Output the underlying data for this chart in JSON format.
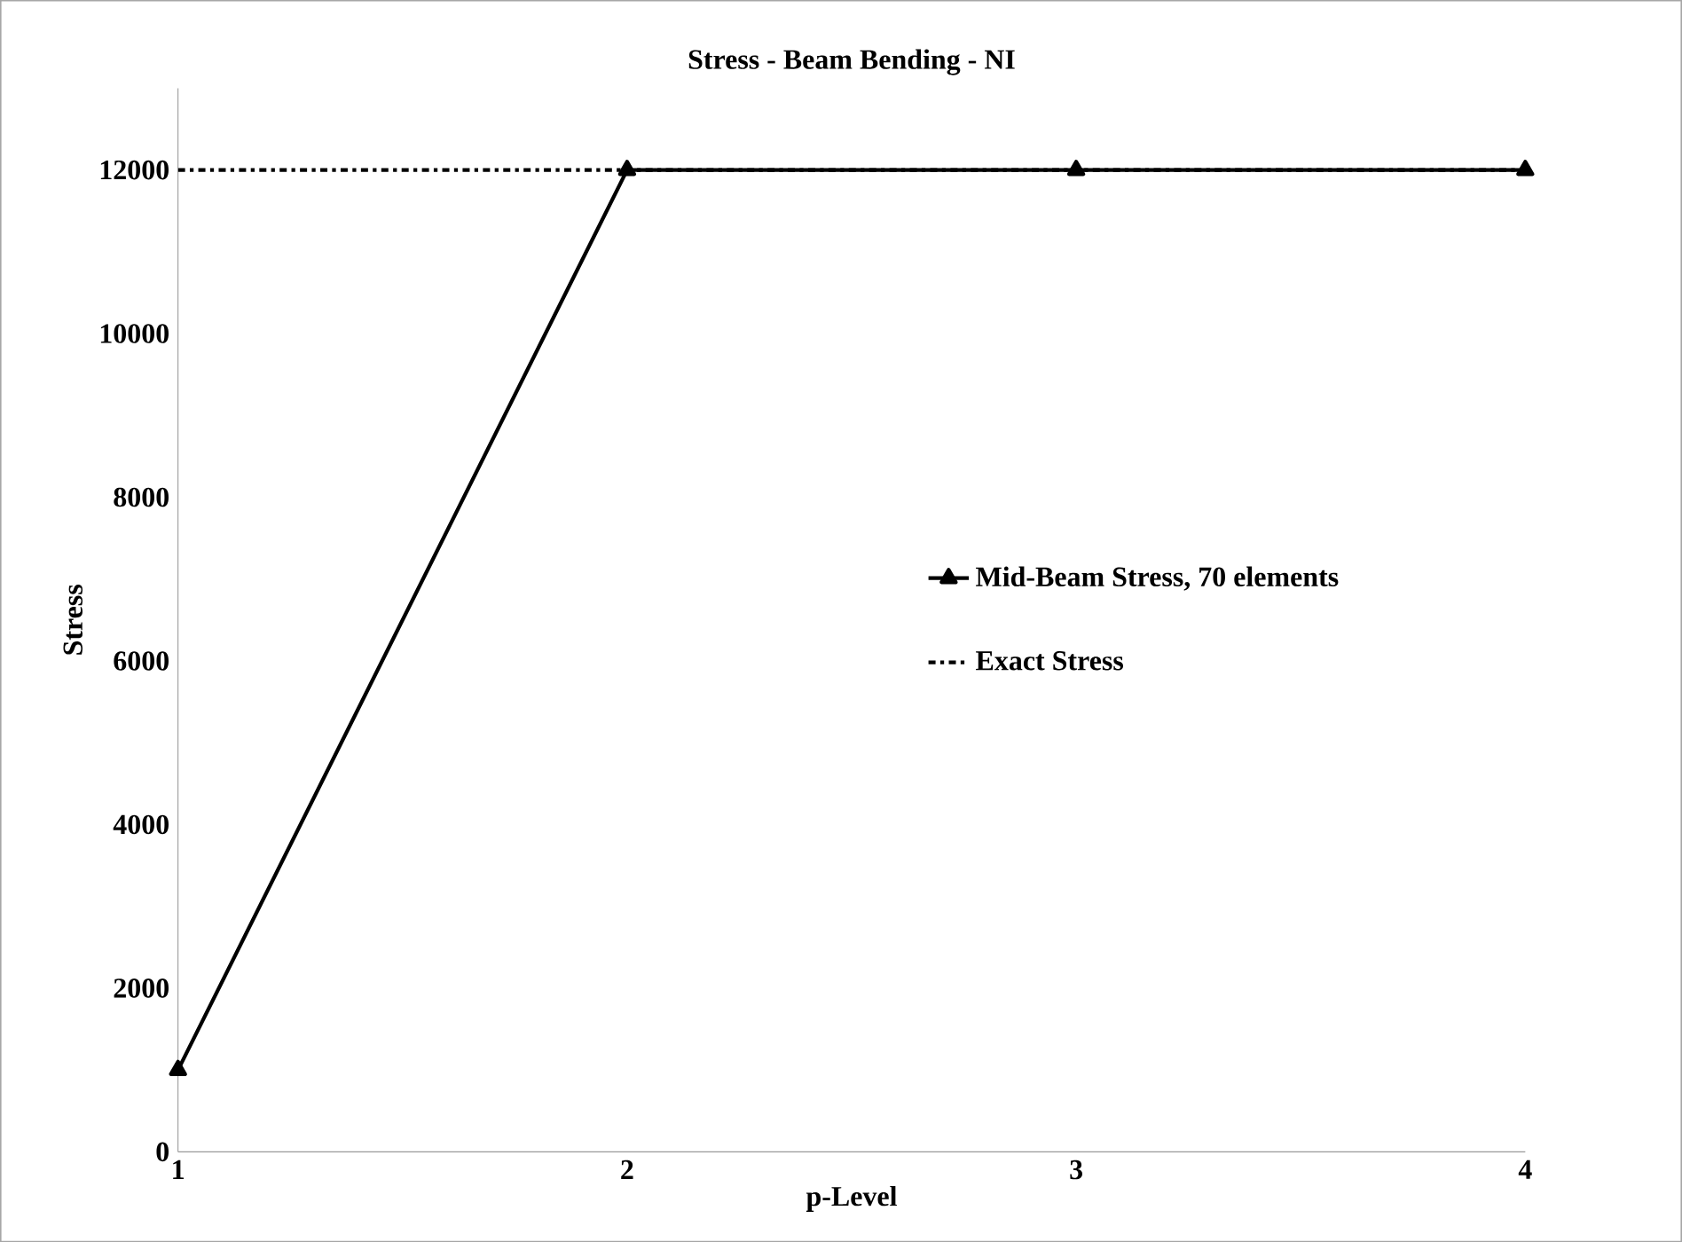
{
  "chart_data": {
    "type": "line",
    "title": "Stress - Beam Bending - NI",
    "xlabel": "p-Level",
    "ylabel": "Stress",
    "xlim": [
      1,
      4
    ],
    "xticks": [
      1,
      2,
      3,
      4
    ],
    "ylim": [
      0,
      13000
    ],
    "yticks": [
      0,
      2000,
      4000,
      6000,
      8000,
      10000,
      12000
    ],
    "grid": false,
    "legend": "right",
    "series": [
      {
        "name": "Mid-Beam Stress, 70 elements",
        "color": "#000000",
        "x": [
          1,
          2,
          3,
          4
        ],
        "values": [
          1000,
          12000,
          12000,
          12000
        ],
        "marker": "triangle",
        "line_style": "solid"
      },
      {
        "name": "Exact Stress",
        "color": "#000000",
        "x": [
          1,
          4
        ],
        "values": [
          12000,
          12000
        ],
        "marker": "none",
        "line_style": "dashdot"
      }
    ]
  }
}
